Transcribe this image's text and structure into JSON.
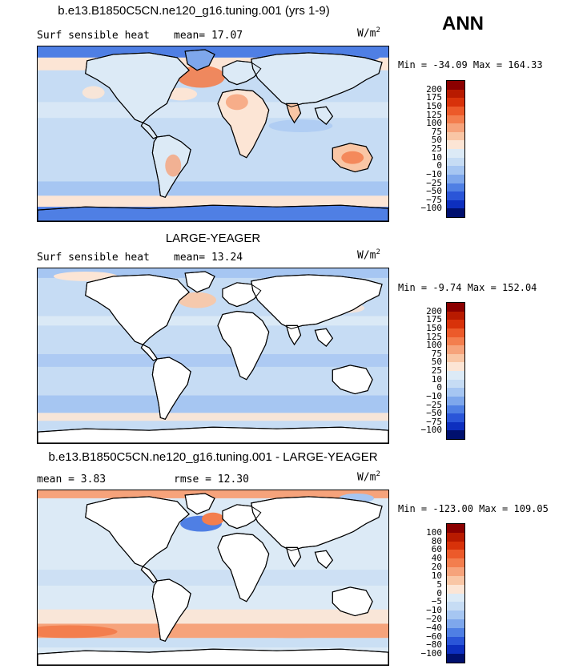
{
  "season": "ANN",
  "panels": [
    {
      "title": "b.e13.B1850C5CN.ne120_g16.tuning.001 (yrs 1-9)",
      "left_label": "Surf sensible heat",
      "mid_label": "mean=  17.07",
      "units": "W/m",
      "units_exp": "2",
      "minmax": "Min = -34.09 Max = 164.33",
      "levels": [
        "200",
        "175",
        "150",
        "125",
        "100",
        "75",
        "50",
        "25",
        "10",
        "0",
        "−10",
        "−25",
        "−50",
        "−75",
        "−100"
      ]
    },
    {
      "title": "LARGE-YEAGER",
      "left_label": "Surf sensible heat",
      "mid_label": "mean=  13.24",
      "units": "W/m",
      "units_exp": "2",
      "minmax": "Min =  -9.74 Max = 152.04",
      "levels": [
        "200",
        "175",
        "150",
        "125",
        "100",
        "75",
        "50",
        "25",
        "10",
        "0",
        "−10",
        "−25",
        "−50",
        "−75",
        "−100"
      ]
    },
    {
      "title": "b.e13.B1850C5CN.ne120_g16.tuning.001 - LARGE-YEAGER",
      "left_label": "mean =   3.83",
      "mid_label": "rmse =  12.30",
      "units": "W/m",
      "units_exp": "2",
      "minmax": "Min = -123.00 Max = 109.05",
      "levels": [
        "100",
        "80",
        "60",
        "40",
        "20",
        "10",
        "5",
        "0",
        "−5",
        "−10",
        "−20",
        "−40",
        "−60",
        "−80",
        "−100"
      ]
    }
  ],
  "colors": {
    "scale": [
      "#8b0000",
      "#b81a00",
      "#d8320a",
      "#ec5a2a",
      "#f37e4e",
      "#f6a37b",
      "#f9c6a5",
      "#fce5d5",
      "#dceaf6",
      "#c6dcf4",
      "#a6c6f2",
      "#7ea7ec",
      "#4f7fe4",
      "#2a55d8",
      "#0d2fbf",
      "#00106e"
    ],
    "land": "#ffffff",
    "coast": "#000000"
  }
}
